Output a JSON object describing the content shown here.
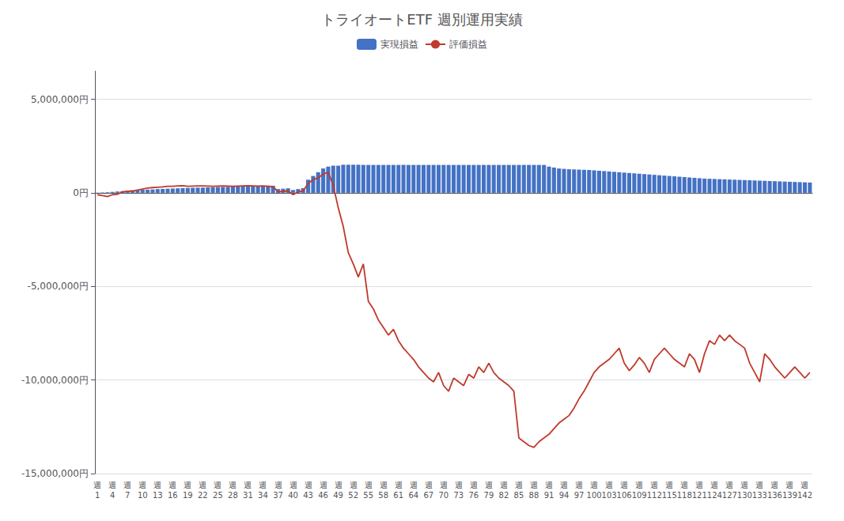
{
  "chart_data": {
    "type": "bar",
    "title": "トライオートETF 週別運用実績",
    "categories": [
      "週\n1",
      null,
      null,
      "週\n4",
      null,
      null,
      "週\n7",
      null,
      null,
      "週\n10",
      null,
      null,
      "週\n13",
      null,
      null,
      "週\n16",
      null,
      null,
      "週\n19",
      null,
      null,
      "週\n22",
      null,
      null,
      "週\n25",
      null,
      null,
      "週\n28",
      null,
      null,
      "週\n31",
      null,
      null,
      "週\n34",
      null,
      null,
      "週\n37",
      null,
      null,
      "週\n40",
      null,
      null,
      "週\n43",
      null,
      null,
      "週\n46",
      null,
      null,
      "週\n49",
      null,
      null,
      "週\n52",
      null,
      null,
      "週\n55",
      null,
      null,
      "週\n58",
      null,
      null,
      "週\n61",
      null,
      null,
      "週\n64",
      null,
      null,
      "週\n67",
      null,
      null,
      "週\n70",
      null,
      null,
      "週\n73",
      null,
      null,
      "週\n76",
      null,
      null,
      "週\n79",
      null,
      null,
      "週\n82",
      null,
      null,
      "週\n85",
      null,
      null,
      "週\n88",
      null,
      null,
      "週\n91",
      null,
      null,
      "週\n94",
      null,
      null,
      "週\n97",
      null,
      null,
      "週\n100",
      null,
      null,
      "週\n103",
      null,
      null,
      "週\n106",
      null,
      null,
      "週\n109",
      null,
      null,
      "週\n112",
      null,
      null,
      "週\n115",
      null,
      null,
      "週\n118",
      null,
      null,
      "週\n121",
      null,
      null,
      "週\n124",
      null,
      null,
      "週\n127",
      null,
      null,
      "週\n130",
      null,
      null,
      "週\n133",
      null,
      null,
      "週\n136",
      null,
      null,
      "週\n139",
      null,
      null,
      "週\n142",
      null
    ],
    "series": [
      {
        "name": "実現損益",
        "type": "bar",
        "color": "#4472c4",
        "values": [
          10000,
          20000,
          30000,
          50000,
          70000,
          90000,
          110000,
          130000,
          150000,
          160000,
          170000,
          180000,
          200000,
          210000,
          220000,
          230000,
          240000,
          250000,
          260000,
          270000,
          280000,
          280000,
          290000,
          300000,
          310000,
          310000,
          320000,
          330000,
          340000,
          350000,
          350000,
          360000,
          370000,
          370000,
          380000,
          380000,
          200000,
          220000,
          240000,
          150000,
          200000,
          250000,
          700000,
          900000,
          1100000,
          1300000,
          1400000,
          1450000,
          1450000,
          1500000,
          1500000,
          1500000,
          1500000,
          1490000,
          1490000,
          1490000,
          1490000,
          1490000,
          1490000,
          1490000,
          1490000,
          1490000,
          1490000,
          1490000,
          1490000,
          1490000,
          1490000,
          1490000,
          1490000,
          1490000,
          1490000,
          1490000,
          1490000,
          1490000,
          1490000,
          1490000,
          1490000,
          1490000,
          1490000,
          1490000,
          1490000,
          1490000,
          1490000,
          1490000,
          1490000,
          1490000,
          1490000,
          1490000,
          1490000,
          1490000,
          1400000,
          1350000,
          1300000,
          1280000,
          1260000,
          1250000,
          1240000,
          1230000,
          1220000,
          1200000,
          1180000,
          1160000,
          1140000,
          1120000,
          1100000,
          1080000,
          1060000,
          1040000,
          1020000,
          1000000,
          980000,
          960000,
          940000,
          920000,
          900000,
          880000,
          860000,
          840000,
          820000,
          800000,
          780000,
          760000,
          750000,
          740000,
          730000,
          720000,
          710000,
          700000,
          690000,
          680000,
          670000,
          660000,
          650000,
          640000,
          630000,
          620000,
          610000,
          600000,
          590000,
          580000,
          570000,
          560000,
          550000
        ]
      },
      {
        "name": "評価損益",
        "type": "line",
        "color": "#c0392b",
        "values": [
          -100000,
          -150000,
          -200000,
          -100000,
          -80000,
          50000,
          80000,
          100000,
          150000,
          200000,
          250000,
          280000,
          300000,
          320000,
          350000,
          350000,
          370000,
          380000,
          350000,
          360000,
          370000,
          370000,
          360000,
          350000,
          360000,
          370000,
          360000,
          350000,
          360000,
          370000,
          380000,
          370000,
          360000,
          370000,
          350000,
          330000,
          50000,
          80000,
          100000,
          -100000,
          50000,
          100000,
          500000,
          700000,
          800000,
          1000000,
          1100000,
          400000,
          -800000,
          -1800000,
          -3200000,
          -3800000,
          -4500000,
          -3800000,
          -5800000,
          -6200000,
          -6800000,
          -7200000,
          -7600000,
          -7300000,
          -7900000,
          -8300000,
          -8600000,
          -8900000,
          -9300000,
          -9600000,
          -9900000,
          -10100000,
          -9600000,
          -10300000,
          -10600000,
          -9900000,
          -10100000,
          -10300000,
          -9700000,
          -9900000,
          -9300000,
          -9600000,
          -9100000,
          -9600000,
          -9900000,
          -10100000,
          -10300000,
          -10600000,
          -13100000,
          -13300000,
          -13500000,
          -13600000,
          -13300000,
          -13100000,
          -12900000,
          -12600000,
          -12300000,
          -12100000,
          -11900000,
          -11500000,
          -11000000,
          -10600000,
          -10100000,
          -9600000,
          -9300000,
          -9100000,
          -8900000,
          -8600000,
          -8300000,
          -9100000,
          -9500000,
          -9200000,
          -8800000,
          -9100000,
          -9600000,
          -8900000,
          -8600000,
          -8300000,
          -8600000,
          -8900000,
          -9100000,
          -9300000,
          -8600000,
          -8900000,
          -9600000,
          -8600000,
          -7900000,
          -8100000,
          -7600000,
          -7900000,
          -7600000,
          -7900000,
          -8100000,
          -8300000,
          -9100000,
          -9600000,
          -10100000,
          -8600000,
          -8900000,
          -9300000,
          -9600000,
          -9900000,
          -9600000,
          -9300000,
          -9600000,
          -9900000,
          -9600000
        ]
      }
    ],
    "ylim": [
      -15000000,
      6500000
    ],
    "yticks": [
      {
        "value": -15000000,
        "label": "-15,000,000円"
      },
      {
        "value": -10000000,
        "label": "-10,000,000円"
      },
      {
        "value": -5000000,
        "label": "-5,000,000円"
      },
      {
        "value": 0,
        "label": "0円"
      },
      {
        "value": 5000000,
        "label": "5,000,000円"
      }
    ],
    "grid": true,
    "legend": "top"
  }
}
